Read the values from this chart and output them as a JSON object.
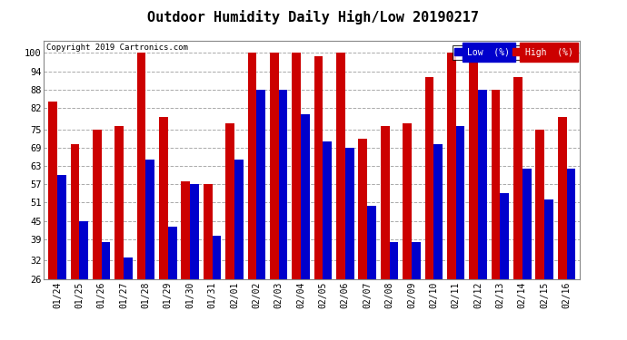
{
  "title": "Outdoor Humidity Daily High/Low 20190217",
  "copyright": "Copyright 2019 Cartronics.com",
  "dates": [
    "01/24",
    "01/25",
    "01/26",
    "01/27",
    "01/28",
    "01/29",
    "01/30",
    "01/31",
    "02/01",
    "02/02",
    "02/03",
    "02/04",
    "02/05",
    "02/06",
    "02/07",
    "02/08",
    "02/09",
    "02/10",
    "02/11",
    "02/12",
    "02/13",
    "02/14",
    "02/15",
    "02/16"
  ],
  "low_values": [
    60,
    45,
    38,
    33,
    65,
    43,
    57,
    40,
    65,
    88,
    88,
    80,
    71,
    69,
    50,
    38,
    38,
    70,
    76,
    88,
    54,
    62,
    52,
    62
  ],
  "high_values": [
    84,
    70,
    75,
    76,
    100,
    79,
    58,
    57,
    77,
    100,
    100,
    100,
    99,
    100,
    72,
    76,
    77,
    92,
    100,
    100,
    88,
    92,
    75,
    79
  ],
  "low_color": "#0000cc",
  "high_color": "#cc0000",
  "bg_color": "#ffffff",
  "grid_color": "#aaaaaa",
  "title_fontsize": 11,
  "yticks": [
    26,
    32,
    39,
    45,
    51,
    57,
    63,
    69,
    75,
    82,
    88,
    94,
    100
  ],
  "ylim": [
    26,
    104
  ],
  "bar_width": 0.4
}
